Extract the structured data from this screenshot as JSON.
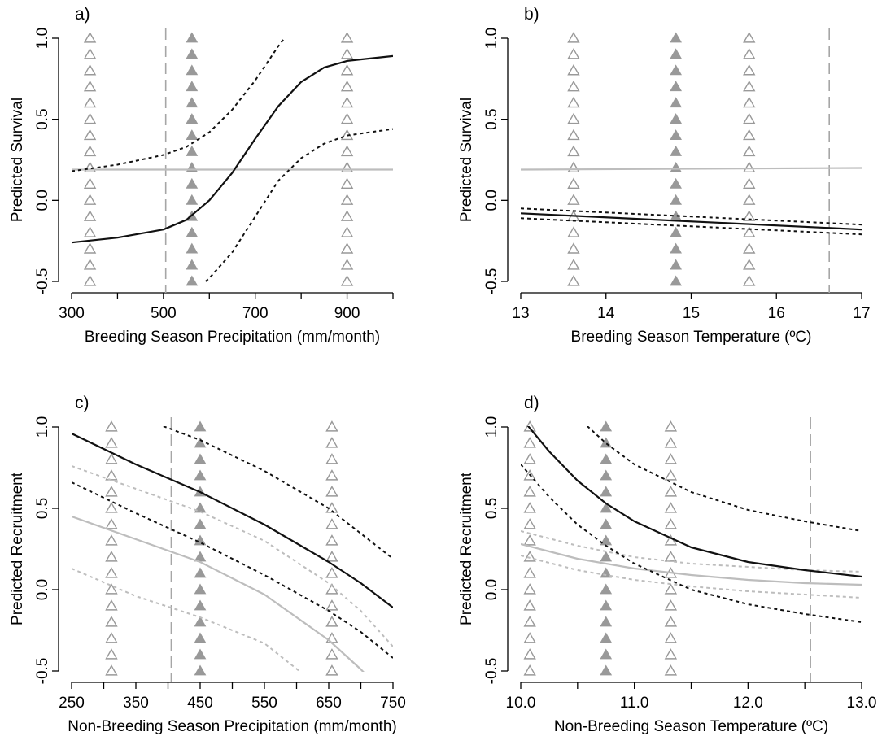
{
  "colors": {
    "model": "#111111",
    "null_model": "#bdbdbd",
    "marker": "#999999",
    "vline": "#a6a6a6"
  },
  "chart_data": [
    {
      "type": "line",
      "panel_label": "a)",
      "xlabel": "Breeding Season Precipitation (mm/month)",
      "ylabel": "Predicted Survival",
      "xlim": [
        300,
        1000
      ],
      "ylim": [
        -0.5,
        1.0
      ],
      "xticks": [
        "300",
        "500",
        "700",
        "900"
      ],
      "yticks": [
        "-0.5",
        "0.0",
        "0.5",
        "1.0"
      ],
      "xtick_values": [
        300,
        400,
        500,
        600,
        700,
        800,
        900,
        1000
      ],
      "ytick_values": [
        -0.5,
        0.0,
        0.5,
        1.0
      ],
      "vline": 505,
      "markers": [
        {
          "x": 340,
          "style": "open"
        },
        {
          "x": 562,
          "style": "filled"
        },
        {
          "x": 900,
          "style": "open"
        }
      ],
      "series": [
        {
          "role": "fit",
          "color": "model",
          "dash": "solid",
          "x": [
            300,
            400,
            500,
            550,
            600,
            650,
            700,
            750,
            800,
            850,
            900,
            1000
          ],
          "y": [
            -0.26,
            -0.23,
            -0.18,
            -0.12,
            0.0,
            0.17,
            0.38,
            0.58,
            0.73,
            0.82,
            0.86,
            0.89
          ]
        },
        {
          "role": "upper",
          "color": "model",
          "dash": "dotted",
          "x": [
            300,
            400,
            500,
            550,
            600,
            650,
            700,
            750,
            780
          ],
          "y": [
            0.18,
            0.22,
            0.28,
            0.33,
            0.42,
            0.56,
            0.74,
            0.95,
            1.06
          ]
        },
        {
          "role": "lower",
          "color": "model",
          "dash": "dotted",
          "x": [
            560,
            600,
            650,
            700,
            750,
            800,
            850,
            900,
            950,
            1000
          ],
          "y": [
            -0.58,
            -0.48,
            -0.32,
            -0.1,
            0.12,
            0.26,
            0.35,
            0.4,
            0.42,
            0.44
          ]
        },
        {
          "role": "null",
          "color": "null_model",
          "dash": "solid",
          "x": [
            300,
            1000
          ],
          "y": [
            0.19,
            0.19
          ]
        }
      ]
    },
    {
      "type": "line",
      "panel_label": "b)",
      "xlabel": "Breeding Season Temperature (ºC)",
      "ylabel": "Predicted Survival",
      "xlim": [
        13,
        17
      ],
      "ylim": [
        -0.5,
        1.0
      ],
      "xticks": [
        "13",
        "14",
        "15",
        "16",
        "17"
      ],
      "yticks": [
        "-0.5",
        "0.0",
        "0.5",
        "1.0"
      ],
      "xtick_values": [
        13,
        14,
        15,
        16,
        17
      ],
      "ytick_values": [
        -0.5,
        0.0,
        0.5,
        1.0
      ],
      "vline": 16.62,
      "markers": [
        {
          "x": 13.62,
          "style": "open"
        },
        {
          "x": 14.82,
          "style": "filled"
        },
        {
          "x": 15.68,
          "style": "open"
        }
      ],
      "series": [
        {
          "role": "fit",
          "color": "model",
          "dash": "solid",
          "x": [
            13,
            17
          ],
          "y": [
            -0.08,
            -0.18
          ]
        },
        {
          "role": "upper",
          "color": "model",
          "dash": "dotted",
          "x": [
            13,
            17
          ],
          "y": [
            -0.05,
            -0.15
          ]
        },
        {
          "role": "lower",
          "color": "model",
          "dash": "dotted",
          "x": [
            13,
            17
          ],
          "y": [
            -0.11,
            -0.21
          ]
        },
        {
          "role": "null",
          "color": "null_model",
          "dash": "solid",
          "x": [
            13,
            17
          ],
          "y": [
            0.19,
            0.2
          ]
        }
      ]
    },
    {
      "type": "line",
      "panel_label": "c)",
      "xlabel": "Non-Breeding Season Precipitation (mm/month)",
      "ylabel": "Predicted Recruitment",
      "xlim": [
        250,
        750
      ],
      "ylim": [
        -0.5,
        1.0
      ],
      "xticks": [
        "250",
        "350",
        "450",
        "550",
        "650",
        "750"
      ],
      "yticks": [
        "-0.5",
        "0.0",
        "0.5",
        "1.0"
      ],
      "xtick_values": [
        250,
        300,
        350,
        400,
        450,
        500,
        550,
        600,
        650,
        700,
        750
      ],
      "ytick_values": [
        -0.5,
        0.0,
        0.5,
        1.0
      ],
      "vline": 405,
      "markers": [
        {
          "x": 312,
          "style": "open"
        },
        {
          "x": 450,
          "style": "filled"
        },
        {
          "x": 655,
          "style": "open"
        }
      ],
      "series": [
        {
          "role": "fit",
          "color": "model",
          "dash": "solid",
          "x": [
            250,
            350,
            450,
            550,
            650,
            700,
            750
          ],
          "y": [
            0.96,
            0.77,
            0.6,
            0.4,
            0.17,
            0.04,
            -0.11
          ]
        },
        {
          "role": "upper",
          "color": "model",
          "dash": "dotted",
          "x": [
            355,
            450,
            550,
            650,
            750
          ],
          "y": [
            1.06,
            0.92,
            0.73,
            0.5,
            0.19
          ]
        },
        {
          "role": "lower",
          "color": "model",
          "dash": "dotted",
          "x": [
            250,
            350,
            450,
            550,
            650,
            700,
            750
          ],
          "y": [
            0.66,
            0.47,
            0.29,
            0.09,
            -0.13,
            -0.26,
            -0.42
          ]
        },
        {
          "role": "null",
          "color": "null_model",
          "dash": "solid",
          "x": [
            250,
            350,
            450,
            550,
            650,
            700,
            722
          ],
          "y": [
            0.45,
            0.31,
            0.17,
            -0.03,
            -0.31,
            -0.49,
            -0.58
          ]
        },
        {
          "role": "null_upper",
          "color": "null_model",
          "dash": "dotted",
          "x": [
            250,
            350,
            450,
            550,
            650,
            700,
            750
          ],
          "y": [
            0.76,
            0.62,
            0.48,
            0.3,
            0.04,
            -0.13,
            -0.35
          ]
        },
        {
          "role": "null_lower",
          "color": "null_model",
          "dash": "dotted",
          "x": [
            250,
            350,
            450,
            550,
            620
          ],
          "y": [
            0.13,
            -0.04,
            -0.17,
            -0.33,
            -0.55
          ]
        }
      ]
    },
    {
      "type": "line",
      "panel_label": "d)",
      "xlabel": "Non-Breeding Season Temperature (ºC)",
      "ylabel": "Predicted Recruitment",
      "xlim": [
        10.0,
        13.0
      ],
      "ylim": [
        -0.5,
        1.0
      ],
      "xticks": [
        "10.0",
        "11.0",
        "12.0",
        "13.0"
      ],
      "yticks": [
        "-0.5",
        "0.0",
        "0.5",
        "1.0"
      ],
      "xtick_values": [
        10.0,
        10.5,
        11.0,
        11.5,
        12.0,
        12.5,
        13.0
      ],
      "ytick_values": [
        -0.5,
        0.0,
        0.5,
        1.0
      ],
      "vline": 12.55,
      "markers": [
        {
          "x": 10.08,
          "style": "open"
        },
        {
          "x": 10.75,
          "style": "filled"
        },
        {
          "x": 11.32,
          "style": "open"
        }
      ],
      "series": [
        {
          "role": "fit",
          "color": "model",
          "dash": "solid",
          "x": [
            10.0,
            10.25,
            10.5,
            10.75,
            11.0,
            11.5,
            12.0,
            12.5,
            13.0
          ],
          "y": [
            1.06,
            0.85,
            0.67,
            0.53,
            0.42,
            0.26,
            0.17,
            0.12,
            0.08
          ]
        },
        {
          "role": "upper",
          "color": "model",
          "dash": "dotted",
          "x": [
            10.5,
            10.75,
            11.0,
            11.5,
            12.0,
            12.5,
            13.0
          ],
          "y": [
            1.06,
            0.9,
            0.77,
            0.6,
            0.49,
            0.42,
            0.36
          ]
        },
        {
          "role": "lower",
          "color": "model",
          "dash": "dotted",
          "x": [
            10.0,
            10.25,
            10.5,
            10.75,
            11.0,
            11.5,
            12.0,
            12.5,
            13.0
          ],
          "y": [
            0.77,
            0.57,
            0.4,
            0.27,
            0.16,
            0.0,
            -0.09,
            -0.15,
            -0.2
          ]
        },
        {
          "role": "null",
          "color": "null_model",
          "dash": "solid",
          "x": [
            10.0,
            10.5,
            11.0,
            11.5,
            12.0,
            12.5,
            13.0
          ],
          "y": [
            0.28,
            0.19,
            0.13,
            0.09,
            0.06,
            0.04,
            0.03
          ]
        },
        {
          "role": "null_upper",
          "color": "null_model",
          "dash": "dotted",
          "x": [
            10.0,
            10.5,
            11.0,
            11.5,
            12.0,
            12.5,
            13.0
          ],
          "y": [
            0.36,
            0.27,
            0.2,
            0.16,
            0.14,
            0.12,
            0.11
          ]
        },
        {
          "role": "null_lower",
          "color": "null_model",
          "dash": "dotted",
          "x": [
            10.0,
            10.5,
            11.0,
            11.5,
            12.0,
            12.5,
            13.0
          ],
          "y": [
            0.21,
            0.12,
            0.06,
            0.02,
            -0.01,
            -0.03,
            -0.05
          ]
        }
      ]
    }
  ]
}
